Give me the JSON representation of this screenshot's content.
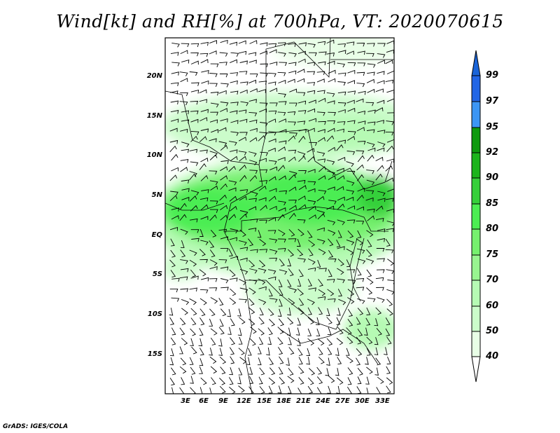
{
  "title": "Wind[kt] and RH[%] at 700hPa, VT: 2020070615",
  "footer": "GrADS: IGES/COLA",
  "map": {
    "lon_labels": [
      "3E",
      "6E",
      "9E",
      "12E",
      "15E",
      "18E",
      "21E",
      "24E",
      "27E",
      "30E",
      "33E"
    ],
    "lat_labels": [
      "20N",
      "15N",
      "10N",
      "5N",
      "EQ",
      "5S",
      "10S",
      "15S"
    ]
  },
  "colorbar": {
    "levels": [
      "99",
      "97",
      "95",
      "92",
      "90",
      "85",
      "80",
      "75",
      "70",
      "60",
      "50",
      "40"
    ],
    "colors": [
      "#1a64d8",
      "#2266e6",
      "#3c96f5",
      "#0e9a0e",
      "#1cb41c",
      "#36d03a",
      "#4ced52",
      "#76f06e",
      "#98f590",
      "#b6fab4",
      "#cbfcca",
      "#e8fee6",
      "#ffffff"
    ]
  }
}
